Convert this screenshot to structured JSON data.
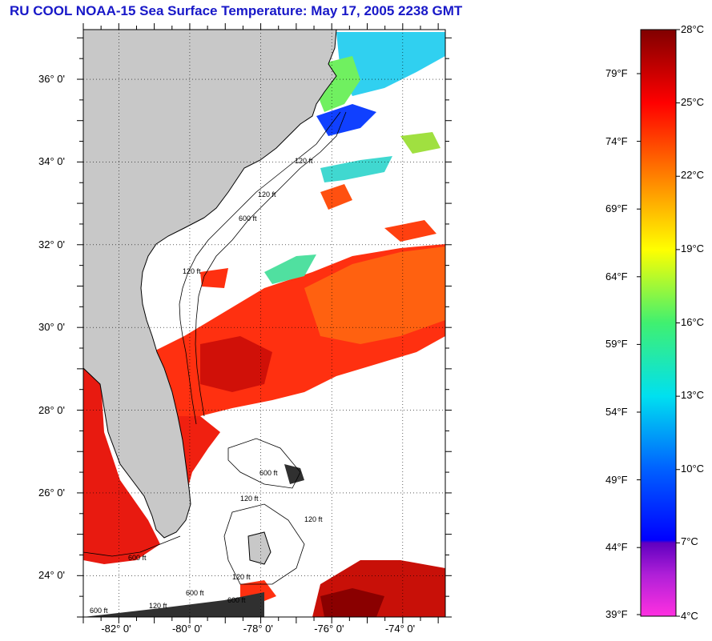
{
  "title": "RU COOL  NOAA-15  Sea Surface Temperature:  May 17, 2005 2238 GMT",
  "map": {
    "lon_range": [
      -83.0,
      -72.8
    ],
    "lat_range": [
      23.0,
      37.2
    ],
    "lat_ticks": [
      {
        "value": 24,
        "label": "24° 0'"
      },
      {
        "value": 26,
        "label": "26° 0'"
      },
      {
        "value": 28,
        "label": "28° 0'"
      },
      {
        "value": 30,
        "label": "30° 0'"
      },
      {
        "value": 32,
        "label": "32° 0'"
      },
      {
        "value": 34,
        "label": "34° 0'"
      },
      {
        "value": 36,
        "label": "36° 0'"
      }
    ],
    "lon_ticks": [
      {
        "value": -82,
        "label": "-82° 0'"
      },
      {
        "value": -80,
        "label": "-80° 0'"
      },
      {
        "value": -78,
        "label": "-78° 0'"
      },
      {
        "value": -76,
        "label": "-76° 0'"
      },
      {
        "value": -74,
        "label": "-74° 0'"
      }
    ],
    "contour_labels": [
      "120 ft",
      "600 ft"
    ],
    "land_color": "#c8c8c8",
    "grid": true
  },
  "colorbar": {
    "celsius_labels": [
      "28°C",
      "25°C",
      "22°C",
      "19°C",
      "16°C",
      "13°C",
      "10°C",
      "7°C",
      "4°C"
    ],
    "fahrenheit_labels": [
      "79°F",
      "74°F",
      "69°F",
      "64°F",
      "59°F",
      "54°F",
      "49°F",
      "44°F",
      "39°F"
    ],
    "range_c": [
      4,
      28
    ]
  }
}
